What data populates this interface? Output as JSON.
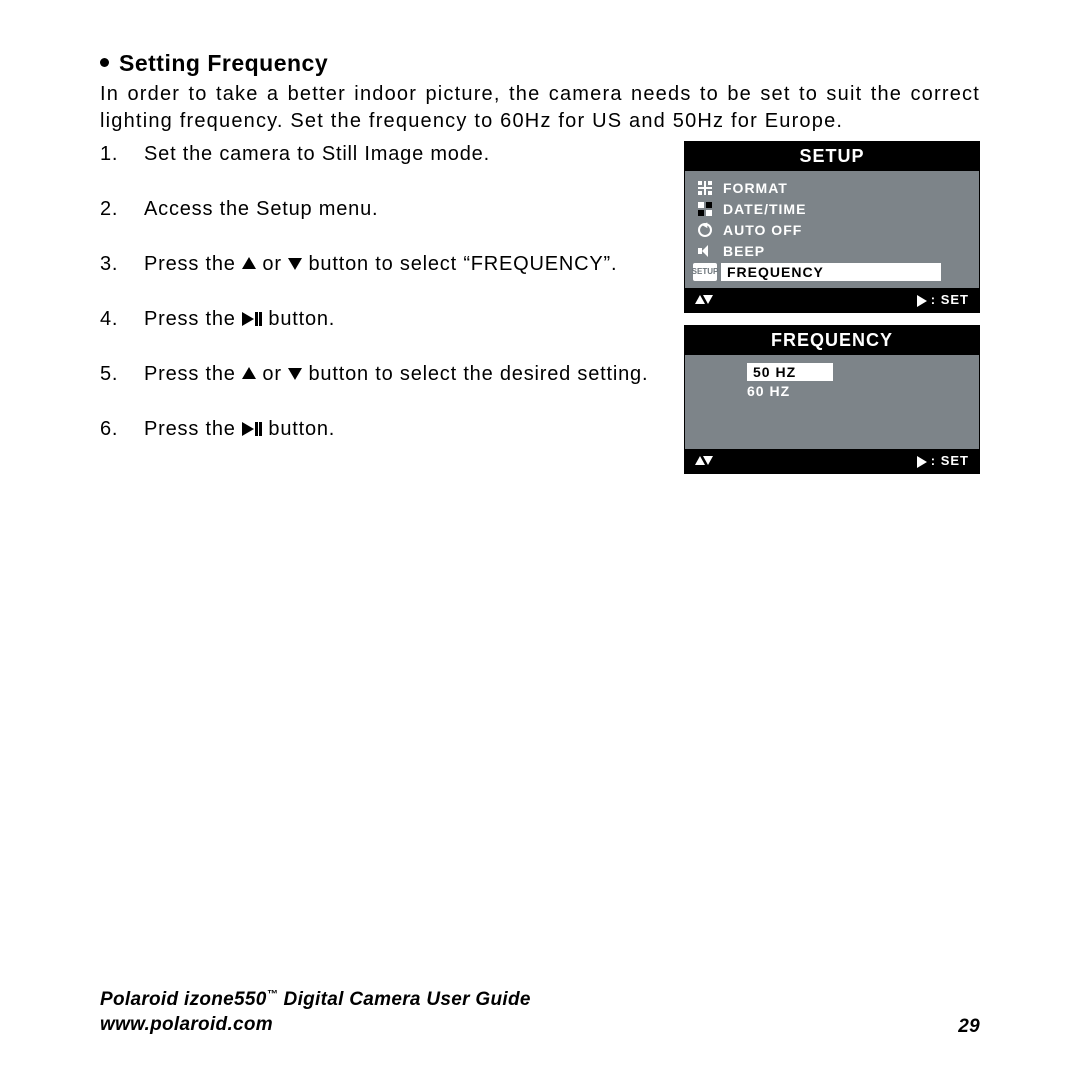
{
  "heading": "Setting Frequency",
  "intro": "In order to take a better indoor picture, the camera needs to be set to suit the correct lighting frequency. Set the frequency to 60Hz for US and 50Hz for Europe.",
  "steps": [
    {
      "num": "1.",
      "before": "Set the camera to Still Image mode.",
      "icons": [],
      "after": ""
    },
    {
      "num": "2.",
      "before": "Access the Setup menu.",
      "icons": [],
      "after": ""
    },
    {
      "num": "3.",
      "before": "Press the ",
      "icons": [
        "up",
        "or",
        "down"
      ],
      "after": " button to select “FREQUENCY”."
    },
    {
      "num": "4.",
      "before": "Press the ",
      "icons": [
        "playpause"
      ],
      "after": " button."
    },
    {
      "num": "5.",
      "before": "Press the ",
      "icons": [
        "up",
        "or",
        "down"
      ],
      "after": " button to select the desired setting."
    },
    {
      "num": "6.",
      "before": "Press the ",
      "icons": [
        "playpause"
      ],
      "after": " button."
    }
  ],
  "lcd1": {
    "title": "SETUP",
    "items": [
      {
        "icon": "format",
        "label": "FORMAT",
        "selected": false
      },
      {
        "icon": "datetime",
        "label": "DATE/TIME",
        "selected": false
      },
      {
        "icon": "autooff",
        "label": "AUTO OFF",
        "selected": false
      },
      {
        "icon": "beep",
        "label": "BEEP",
        "selected": false
      },
      {
        "icon": "setup",
        "label": "FREQUENCY",
        "selected": true
      }
    ],
    "footer_set": "SET"
  },
  "lcd2": {
    "title": "FREQUENCY",
    "items": [
      {
        "label": "50 HZ",
        "selected": true
      },
      {
        "label": "60 HZ",
        "selected": false
      }
    ],
    "footer_set": "SET"
  },
  "colors": {
    "page_bg": "#ffffff",
    "text": "#000000",
    "lcd_frame": "#000000",
    "lcd_body": "#7d8489",
    "lcd_text": "#ffffff",
    "lcd_sel_bg": "#ffffff",
    "lcd_sel_text": "#000000"
  },
  "footer": {
    "line1_a": "Polaroid izone550",
    "line1_b": " Digital Camera User Guide",
    "line2": "www.polaroid.com",
    "page": "29",
    "tm": "™"
  }
}
